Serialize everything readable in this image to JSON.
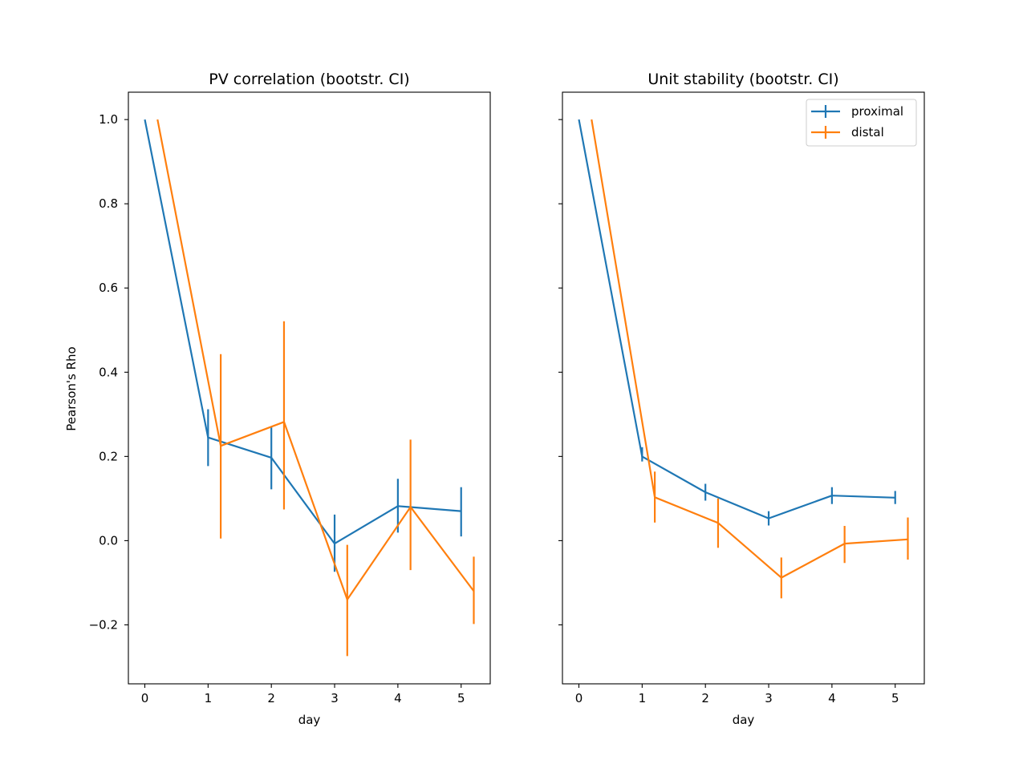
{
  "chart_data": [
    {
      "type": "line",
      "title": "PV correlation (bootstr. CI)",
      "xlabel": "day",
      "ylabel": "Pearson's Rho",
      "xlim": [
        -0.26,
        5.46
      ],
      "ylim": [
        -0.34,
        1.065
      ],
      "xticks": [
        0,
        1,
        2,
        3,
        4,
        5
      ],
      "xtick_labels": [
        "0",
        "1",
        "2",
        "3",
        "4",
        "5"
      ],
      "yticks": [
        -0.2,
        0.0,
        0.2,
        0.4,
        0.6,
        0.8,
        1.0
      ],
      "ytick_labels": [
        "−0.2",
        "0.0",
        "0.2",
        "0.4",
        "0.6",
        "0.8",
        "1.0"
      ],
      "series": [
        {
          "name": "proximal",
          "color": "#1f77b4",
          "x": [
            0,
            1,
            2,
            3,
            4,
            5
          ],
          "y": [
            1.0,
            0.245,
            0.197,
            -0.007,
            0.082,
            0.07
          ],
          "err_low": [
            1.0,
            0.177,
            0.122,
            -0.074,
            0.019,
            0.01
          ],
          "err_high": [
            1.0,
            0.312,
            0.27,
            0.062,
            0.147,
            0.127
          ]
        },
        {
          "name": "distal",
          "color": "#ff7f0e",
          "x": [
            0.2,
            1.2,
            2.2,
            3.2,
            4.2,
            5.2
          ],
          "y": [
            1.0,
            0.225,
            0.282,
            -0.14,
            0.08,
            -0.12
          ],
          "err_low": [
            1.0,
            0.005,
            0.074,
            -0.274,
            -0.07,
            -0.198
          ],
          "err_high": [
            1.0,
            0.443,
            0.521,
            -0.01,
            0.24,
            -0.038
          ]
        }
      ]
    },
    {
      "type": "line",
      "title": "Unit stability (bootstr. CI)",
      "xlabel": "day",
      "ylabel": "",
      "xlim": [
        -0.26,
        5.46
      ],
      "ylim": [
        -0.34,
        1.065
      ],
      "xticks": [
        0,
        1,
        2,
        3,
        4,
        5
      ],
      "xtick_labels": [
        "0",
        "1",
        "2",
        "3",
        "4",
        "5"
      ],
      "yticks": [
        -0.2,
        0.0,
        0.2,
        0.4,
        0.6,
        0.8,
        1.0
      ],
      "ytick_labels": [],
      "legend": {
        "placement": "top-right",
        "entries": [
          "proximal",
          "distal"
        ]
      },
      "series": [
        {
          "name": "proximal",
          "color": "#1f77b4",
          "x": [
            0,
            1,
            2,
            3,
            4,
            5
          ],
          "y": [
            1.0,
            0.2,
            0.115,
            0.053,
            0.107,
            0.102
          ],
          "err_low": [
            1.0,
            0.188,
            0.095,
            0.036,
            0.087,
            0.087
          ],
          "err_high": [
            1.0,
            0.222,
            0.135,
            0.07,
            0.127,
            0.118
          ]
        },
        {
          "name": "distal",
          "color": "#ff7f0e",
          "x": [
            0.2,
            1.2,
            2.2,
            3.2,
            4.2,
            5.2
          ],
          "y": [
            1.0,
            0.103,
            0.042,
            -0.088,
            -0.007,
            0.003
          ],
          "err_low": [
            1.0,
            0.043,
            -0.017,
            -0.137,
            -0.053,
            -0.045
          ],
          "err_high": [
            1.0,
            0.164,
            0.1,
            -0.04,
            0.035,
            0.055
          ]
        }
      ]
    }
  ]
}
